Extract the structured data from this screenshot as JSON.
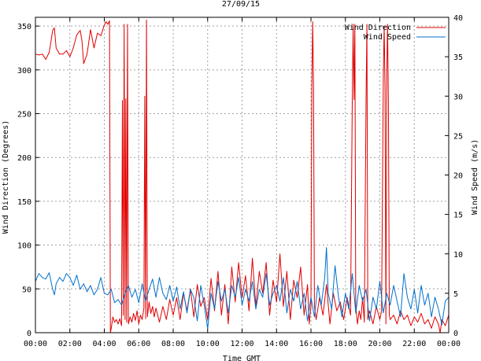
{
  "chart_data": {
    "type": "line",
    "title": "27/09/15",
    "xlabel": "Time GMT",
    "ylabel_left": "Wind Direction (Degrees)",
    "ylabel_right": "Wind Speed (m/s)",
    "xlim": [
      0,
      24
    ],
    "ylim_left": [
      0,
      360
    ],
    "ylim_right": [
      0,
      40
    ],
    "x_ticks": [
      0,
      2,
      4,
      6,
      8,
      10,
      12,
      14,
      16,
      18,
      20,
      22,
      24
    ],
    "x_tick_labels": [
      "00:00",
      "02:00",
      "04:00",
      "06:00",
      "08:00",
      "10:00",
      "12:00",
      "14:00",
      "16:00",
      "18:00",
      "20:00",
      "22:00",
      "00:00"
    ],
    "y_ticks_left": [
      0,
      50,
      100,
      150,
      200,
      250,
      300,
      350
    ],
    "y_tick_labels_left": [
      "0",
      "50",
      "100",
      "150",
      "200",
      "250",
      "300",
      "350"
    ],
    "y_ticks_right": [
      0,
      5,
      10,
      15,
      20,
      25,
      30,
      35,
      40
    ],
    "y_tick_labels_right": [
      "0",
      "5",
      "10",
      "15",
      "20",
      "25",
      "30",
      "35",
      "40"
    ],
    "grid": true,
    "legend_position": "top-right",
    "series": [
      {
        "name": "Wind Direction",
        "axis": "left",
        "color": "#e00000",
        "points": [
          [
            0.0,
            318
          ],
          [
            0.2,
            317
          ],
          [
            0.4,
            318
          ],
          [
            0.6,
            312
          ],
          [
            0.8,
            320
          ],
          [
            0.9,
            332
          ],
          [
            1.0,
            345
          ],
          [
            1.1,
            348
          ],
          [
            1.2,
            325
          ],
          [
            1.4,
            318
          ],
          [
            1.6,
            318
          ],
          [
            1.8,
            322
          ],
          [
            2.0,
            315
          ],
          [
            2.2,
            325
          ],
          [
            2.4,
            340
          ],
          [
            2.6,
            345
          ],
          [
            2.7,
            333
          ],
          [
            2.8,
            307
          ],
          [
            3.0,
            318
          ],
          [
            3.2,
            346
          ],
          [
            3.4,
            325
          ],
          [
            3.6,
            342
          ],
          [
            3.8,
            339
          ],
          [
            4.0,
            351
          ],
          [
            4.1,
            355
          ],
          [
            4.2,
            352
          ],
          [
            4.3,
            356
          ],
          [
            4.35,
            0
          ],
          [
            4.4,
            5
          ],
          [
            4.5,
            18
          ],
          [
            4.6,
            12
          ],
          [
            4.7,
            15
          ],
          [
            4.8,
            10
          ],
          [
            4.9,
            16
          ],
          [
            5.0,
            8
          ],
          [
            5.05,
            265
          ],
          [
            5.1,
            20
          ],
          [
            5.15,
            352
          ],
          [
            5.2,
            15
          ],
          [
            5.25,
            267
          ],
          [
            5.3,
            12
          ],
          [
            5.35,
            352
          ],
          [
            5.4,
            10
          ],
          [
            5.5,
            18
          ],
          [
            5.6,
            12
          ],
          [
            5.7,
            22
          ],
          [
            5.8,
            14
          ],
          [
            5.9,
            25
          ],
          [
            6.0,
            10
          ],
          [
            6.1,
            20
          ],
          [
            6.2,
            15
          ],
          [
            6.3,
            28
          ],
          [
            6.35,
            270
          ],
          [
            6.4,
            16
          ],
          [
            6.45,
            357
          ],
          [
            6.5,
            18
          ],
          [
            6.6,
            35
          ],
          [
            6.7,
            22
          ],
          [
            6.8,
            30
          ],
          [
            6.9,
            18
          ],
          [
            7.0,
            28
          ],
          [
            7.2,
            12
          ],
          [
            7.4,
            30
          ],
          [
            7.6,
            15
          ],
          [
            7.8,
            38
          ],
          [
            8.0,
            20
          ],
          [
            8.2,
            40
          ],
          [
            8.4,
            15
          ],
          [
            8.6,
            45
          ],
          [
            8.8,
            25
          ],
          [
            9.0,
            50
          ],
          [
            9.2,
            18
          ],
          [
            9.4,
            55
          ],
          [
            9.6,
            30
          ],
          [
            9.8,
            40
          ],
          [
            10.0,
            15
          ],
          [
            10.2,
            62
          ],
          [
            10.4,
            25
          ],
          [
            10.6,
            70
          ],
          [
            10.8,
            20
          ],
          [
            11.0,
            55
          ],
          [
            11.2,
            10
          ],
          [
            11.4,
            75
          ],
          [
            11.6,
            35
          ],
          [
            11.8,
            80
          ],
          [
            12.0,
            40
          ],
          [
            12.2,
            65
          ],
          [
            12.4,
            25
          ],
          [
            12.6,
            85
          ],
          [
            12.8,
            30
          ],
          [
            13.0,
            70
          ],
          [
            13.2,
            45
          ],
          [
            13.4,
            80
          ],
          [
            13.6,
            20
          ],
          [
            13.8,
            60
          ],
          [
            14.0,
            35
          ],
          [
            14.2,
            90
          ],
          [
            14.4,
            30
          ],
          [
            14.6,
            70
          ],
          [
            14.8,
            15
          ],
          [
            15.0,
            60
          ],
          [
            15.2,
            40
          ],
          [
            15.4,
            75
          ],
          [
            15.6,
            20
          ],
          [
            15.8,
            55
          ],
          [
            15.9,
            10
          ],
          [
            16.0,
            30
          ],
          [
            16.05,
            280
          ],
          [
            16.1,
            355
          ],
          [
            16.15,
            278
          ],
          [
            16.2,
            30
          ],
          [
            16.3,
            15
          ],
          [
            16.5,
            40
          ],
          [
            16.7,
            20
          ],
          [
            16.9,
            55
          ],
          [
            17.1,
            10
          ],
          [
            17.3,
            45
          ],
          [
            17.5,
            25
          ],
          [
            17.7,
            35
          ],
          [
            17.9,
            15
          ],
          [
            18.1,
            40
          ],
          [
            18.3,
            20
          ],
          [
            18.4,
            268
          ],
          [
            18.45,
            352
          ],
          [
            18.5,
            266
          ],
          [
            18.55,
            352
          ],
          [
            18.6,
            30
          ],
          [
            18.7,
            10
          ],
          [
            18.8,
            25
          ],
          [
            18.9,
            15
          ],
          [
            19.0,
            40
          ],
          [
            19.1,
            12
          ],
          [
            19.2,
            268
          ],
          [
            19.25,
            352
          ],
          [
            19.3,
            15
          ],
          [
            19.4,
            25
          ],
          [
            19.6,
            10
          ],
          [
            19.8,
            30
          ],
          [
            20.0,
            15
          ],
          [
            20.1,
            25
          ],
          [
            20.2,
            290
          ],
          [
            20.25,
            350
          ],
          [
            20.3,
            280
          ],
          [
            20.35,
            10
          ],
          [
            20.4,
            295
          ],
          [
            20.45,
            352
          ],
          [
            20.5,
            262
          ],
          [
            20.55,
            20
          ],
          [
            20.6,
            15
          ],
          [
            20.8,
            20
          ],
          [
            21.0,
            10
          ],
          [
            21.2,
            25
          ],
          [
            21.4,
            15
          ],
          [
            21.6,
            20
          ],
          [
            21.8,
            8
          ],
          [
            22.0,
            18
          ],
          [
            22.2,
            12
          ],
          [
            22.4,
            22
          ],
          [
            22.6,
            10
          ],
          [
            22.8,
            15
          ],
          [
            23.0,
            5
          ],
          [
            23.2,
            18
          ],
          [
            23.4,
            10
          ],
          [
            23.5,
            0
          ],
          [
            23.6,
            15
          ],
          [
            23.8,
            8
          ],
          [
            24.0,
            20
          ]
        ]
      },
      {
        "name": "Wind Speed",
        "axis": "right",
        "color": "#0070cc",
        "points": [
          [
            0.0,
            6.5
          ],
          [
            0.2,
            7.5
          ],
          [
            0.4,
            7.0
          ],
          [
            0.6,
            6.8
          ],
          [
            0.8,
            7.6
          ],
          [
            1.0,
            5.5
          ],
          [
            1.1,
            4.8
          ],
          [
            1.2,
            6.2
          ],
          [
            1.4,
            7.0
          ],
          [
            1.6,
            6.5
          ],
          [
            1.8,
            7.5
          ],
          [
            2.0,
            7.0
          ],
          [
            2.2,
            6.0
          ],
          [
            2.4,
            7.3
          ],
          [
            2.6,
            5.5
          ],
          [
            2.8,
            6.2
          ],
          [
            3.0,
            5.2
          ],
          [
            3.2,
            6.0
          ],
          [
            3.4,
            4.8
          ],
          [
            3.6,
            5.5
          ],
          [
            3.8,
            7.0
          ],
          [
            4.0,
            5.0
          ],
          [
            4.2,
            4.8
          ],
          [
            4.4,
            5.5
          ],
          [
            4.6,
            3.8
          ],
          [
            4.8,
            4.2
          ],
          [
            5.0,
            3.5
          ],
          [
            5.2,
            5.0
          ],
          [
            5.4,
            6.0
          ],
          [
            5.6,
            4.5
          ],
          [
            5.8,
            5.5
          ],
          [
            6.0,
            3.8
          ],
          [
            6.2,
            6.2
          ],
          [
            6.4,
            4.0
          ],
          [
            6.6,
            5.5
          ],
          [
            6.8,
            6.8
          ],
          [
            7.0,
            4.5
          ],
          [
            7.2,
            7.0
          ],
          [
            7.4,
            5.0
          ],
          [
            7.6,
            4.2
          ],
          [
            7.8,
            6.0
          ],
          [
            8.0,
            4.0
          ],
          [
            8.2,
            5.8
          ],
          [
            8.4,
            3.0
          ],
          [
            8.6,
            5.2
          ],
          [
            8.8,
            2.5
          ],
          [
            9.0,
            5.5
          ],
          [
            9.2,
            4.5
          ],
          [
            9.4,
            1.5
          ],
          [
            9.6,
            6.0
          ],
          [
            9.8,
            3.5
          ],
          [
            10.0,
            0.5
          ],
          [
            10.2,
            5.0
          ],
          [
            10.4,
            3.0
          ],
          [
            10.6,
            6.5
          ],
          [
            10.8,
            4.0
          ],
          [
            11.0,
            5.5
          ],
          [
            11.2,
            2.5
          ],
          [
            11.4,
            6.0
          ],
          [
            11.6,
            4.5
          ],
          [
            11.8,
            7.0
          ],
          [
            12.0,
            3.5
          ],
          [
            12.2,
            5.5
          ],
          [
            12.4,
            4.0
          ],
          [
            12.6,
            6.5
          ],
          [
            12.8,
            3.0
          ],
          [
            13.0,
            5.5
          ],
          [
            13.2,
            4.5
          ],
          [
            13.4,
            7.5
          ],
          [
            13.6,
            3.5
          ],
          [
            13.8,
            5.0
          ],
          [
            14.0,
            6.0
          ],
          [
            14.2,
            4.0
          ],
          [
            14.4,
            7.0
          ],
          [
            14.6,
            2.5
          ],
          [
            14.8,
            5.5
          ],
          [
            15.0,
            4.0
          ],
          [
            15.2,
            6.5
          ],
          [
            15.4,
            3.0
          ],
          [
            15.6,
            5.0
          ],
          [
            15.8,
            1.5
          ],
          [
            16.0,
            4.5
          ],
          [
            16.2,
            2.0
          ],
          [
            16.4,
            6.0
          ],
          [
            16.6,
            3.5
          ],
          [
            16.8,
            7.0
          ],
          [
            16.9,
            10.8
          ],
          [
            17.0,
            5.0
          ],
          [
            17.2,
            3.0
          ],
          [
            17.4,
            8.5
          ],
          [
            17.6,
            4.5
          ],
          [
            17.8,
            2.0
          ],
          [
            18.0,
            5.0
          ],
          [
            18.2,
            3.0
          ],
          [
            18.4,
            7.5
          ],
          [
            18.6,
            2.5
          ],
          [
            18.8,
            6.0
          ],
          [
            19.0,
            4.0
          ],
          [
            19.2,
            5.5
          ],
          [
            19.4,
            1.5
          ],
          [
            19.6,
            4.5
          ],
          [
            19.8,
            3.0
          ],
          [
            20.0,
            6.5
          ],
          [
            20.2,
            2.5
          ],
          [
            20.4,
            5.0
          ],
          [
            20.6,
            3.5
          ],
          [
            20.8,
            6.0
          ],
          [
            21.0,
            4.0
          ],
          [
            21.2,
            2.0
          ],
          [
            21.4,
            7.5
          ],
          [
            21.6,
            4.5
          ],
          [
            21.8,
            3.0
          ],
          [
            22.0,
            5.5
          ],
          [
            22.2,
            2.5
          ],
          [
            22.4,
            6.0
          ],
          [
            22.6,
            3.5
          ],
          [
            22.8,
            5.0
          ],
          [
            23.0,
            2.0
          ],
          [
            23.2,
            4.5
          ],
          [
            23.4,
            3.0
          ],
          [
            23.6,
            1.0
          ],
          [
            23.8,
            4.0
          ],
          [
            24.0,
            4.5
          ]
        ]
      }
    ]
  }
}
